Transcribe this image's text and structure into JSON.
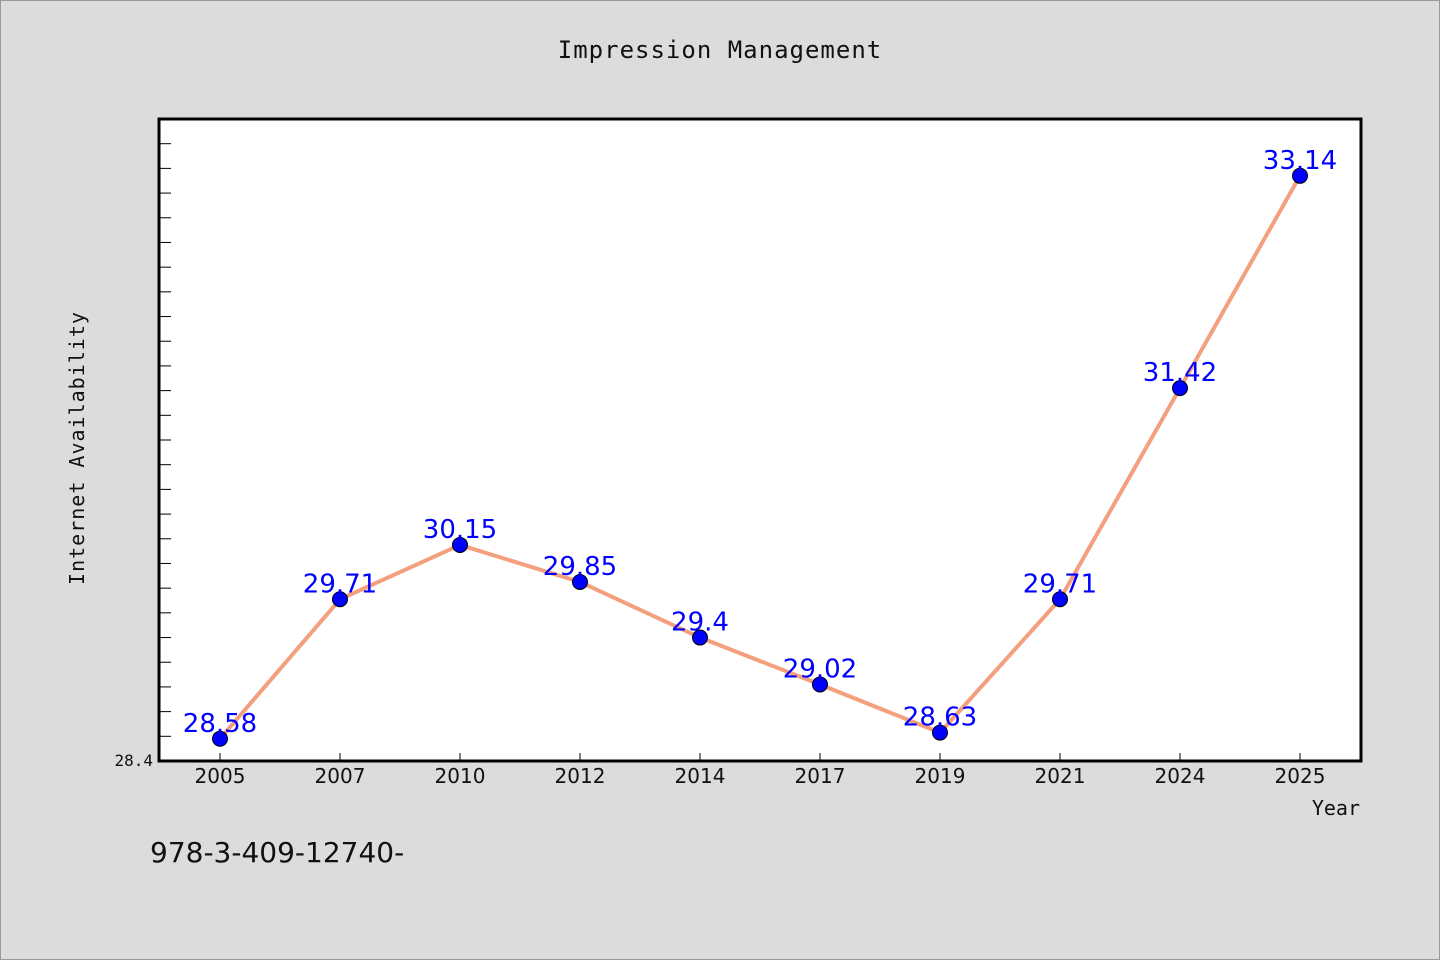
{
  "title": "Impression Management",
  "footer_text": "978-3-409-12740-",
  "colors": {
    "background": "#dcdcdc",
    "plot_background": "#ffffff",
    "line": "#f4a07e",
    "marker": "#0000ff",
    "data_label": "#0000ff"
  },
  "chart_data": {
    "type": "line",
    "title": "Impression Management",
    "xlabel": "Year",
    "ylabel": "Internet Availability",
    "categories": [
      "2005",
      "2007",
      "2010",
      "2012",
      "2014",
      "2017",
      "2019",
      "2021",
      "2024",
      "2025"
    ],
    "series": [
      {
        "values": [
          28.58,
          29.71,
          30.15,
          29.85,
          29.4,
          29.02,
          28.63,
          29.71,
          31.42,
          33.14
        ]
      }
    ],
    "data_labels": [
      "28.58",
      "29.71",
      "30.15",
      "29.85",
      "29.4",
      "29.02",
      "28.63",
      "29.71",
      "31.42",
      "33.14"
    ],
    "ylim": [
      28.4,
      33.6
    ],
    "y_tick_labels": [
      "28.4"
    ],
    "grid": false,
    "legend": "none"
  }
}
